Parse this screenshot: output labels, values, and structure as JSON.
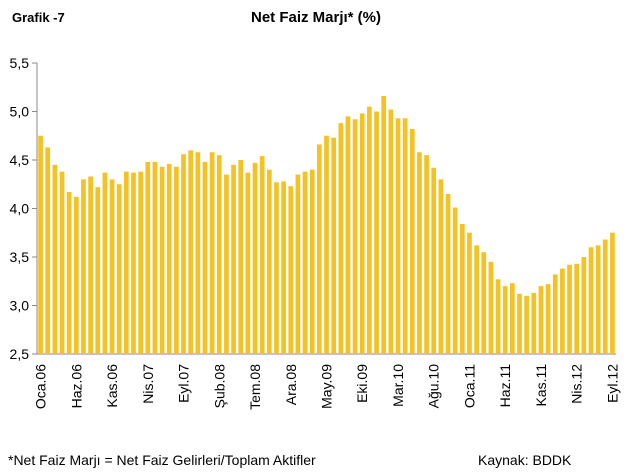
{
  "chart_data": {
    "type": "bar",
    "label": "Grafik -7",
    "title": "Net Faiz Marjı* (%)",
    "footnote": "*Net Faiz Marjı = Net Faiz Gelirleri/Toplam Aktifler",
    "source": "Kaynak: BDDK",
    "color": "#f5c225",
    "categories": [
      "Oca.06",
      null,
      null,
      null,
      null,
      "Haz.06",
      null,
      null,
      null,
      null,
      "Kas.06",
      null,
      null,
      null,
      null,
      "Nis.07",
      null,
      null,
      null,
      null,
      "Eyl.07",
      null,
      null,
      null,
      null,
      "Şub.08",
      null,
      null,
      null,
      null,
      "Tem.08",
      null,
      null,
      null,
      null,
      "Ara.08",
      null,
      null,
      null,
      null,
      "May.09",
      null,
      null,
      null,
      null,
      "Eki.09",
      null,
      null,
      null,
      null,
      "Mar.10",
      null,
      null,
      null,
      null,
      "Ağu.10",
      null,
      null,
      null,
      null,
      "Oca.11",
      null,
      null,
      null,
      null,
      "Haz.11",
      null,
      null,
      null,
      null,
      "Kas.11",
      null,
      null,
      null,
      null,
      "Nis.12",
      null,
      null,
      null,
      null,
      "Eyl.12"
    ],
    "values": [
      4.75,
      4.63,
      4.45,
      4.38,
      4.17,
      4.12,
      4.3,
      4.33,
      4.22,
      4.37,
      4.3,
      4.25,
      4.38,
      4.37,
      4.38,
      4.48,
      4.48,
      4.43,
      4.46,
      4.43,
      4.56,
      4.6,
      4.58,
      4.48,
      4.58,
      4.55,
      4.35,
      4.45,
      4.5,
      4.37,
      4.47,
      4.54,
      4.4,
      4.27,
      4.28,
      4.23,
      4.35,
      4.38,
      4.4,
      4.66,
      4.75,
      4.73,
      4.88,
      4.95,
      4.92,
      4.98,
      5.05,
      5.0,
      5.16,
      5.02,
      4.93,
      4.93,
      4.82,
      4.58,
      4.55,
      4.42,
      4.3,
      4.15,
      4.01,
      3.84,
      3.75,
      3.62,
      3.55,
      3.45,
      3.27,
      3.2,
      3.23,
      3.12,
      3.1,
      3.13,
      3.2,
      3.22,
      3.32,
      3.38,
      3.42,
      3.43,
      3.5,
      3.6,
      3.62,
      3.68,
      3.75
    ],
    "ylim": [
      2.5,
      5.5
    ],
    "yticks": [
      {
        "value": 2.5,
        "label": "2,5"
      },
      {
        "value": 3.0,
        "label": "3,0"
      },
      {
        "value": 3.5,
        "label": "3,5"
      },
      {
        "value": 4.0,
        "label": "4,0"
      },
      {
        "value": 4.5,
        "label": "4,5"
      },
      {
        "value": 5.0,
        "label": "5,0"
      },
      {
        "value": 5.5,
        "label": "5,5"
      }
    ]
  }
}
